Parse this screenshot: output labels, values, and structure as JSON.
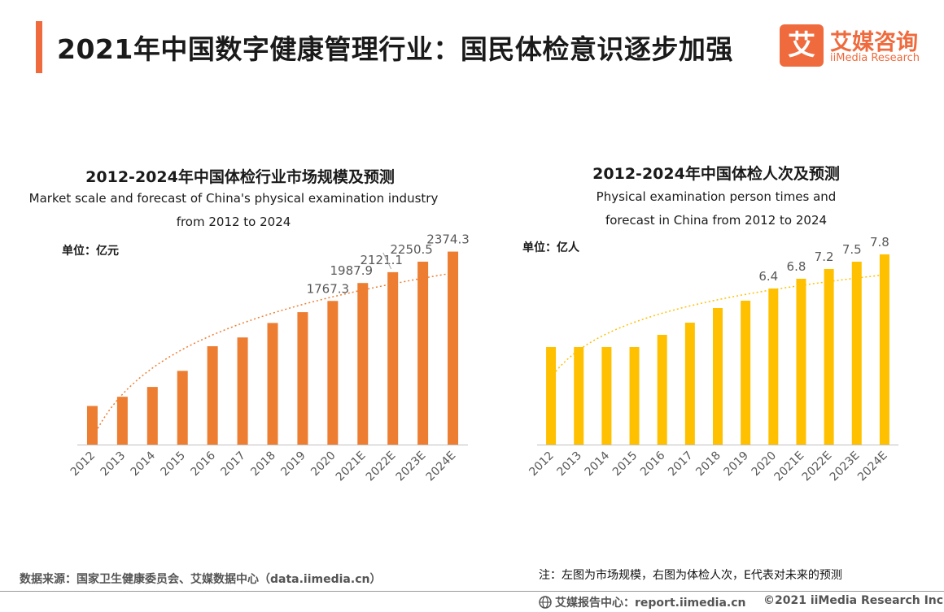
{
  "page": {
    "title": "2021年中国数字健康管理行业：国民体检意识逐步加强"
  },
  "logo": {
    "mark": "艾",
    "cn": "艾媒咨询",
    "en": "iiMedia Research"
  },
  "colors": {
    "accent": "#ef6a3c",
    "orange": "#ed7d31",
    "yellow": "#ffc000",
    "axis": "#bfbfbf",
    "label": "#595959"
  },
  "footer": {
    "source": "数据来源：国家卫生健康委员会、艾媒数据中心（data.iimedia.cn）",
    "note": "注：左图为市场规模，右图为体检人次，E代表对未来的预测",
    "report": "艾媒报告中心：report.iimedia.cn",
    "copyright": "©2021  iiMedia Research  Inc"
  },
  "chart_data": [
    {
      "type": "bar",
      "title": "2012-2024年中国体检行业市场规模及预测",
      "subtitle_lines": [
        "Market scale and forecast of China's physical examination industry",
        "from 2012 to 2024"
      ],
      "unit": "单位：亿元",
      "categories": [
        "2012",
        "2013",
        "2014",
        "2015",
        "2016",
        "2017",
        "2018",
        "2019",
        "2020",
        "2021E",
        "2022E",
        "2023E",
        "2024E"
      ],
      "values": [
        475,
        588,
        709,
        907,
        1210,
        1318,
        1496,
        1629,
        1767.3,
        1987.9,
        2121.1,
        2250.5,
        2374.3
      ],
      "labels": [
        "",
        "",
        "",
        "",
        "",
        "",
        "",
        "",
        "1767.3",
        "1987.9",
        "2121.1",
        "2250.5",
        "2374.3"
      ],
      "ylim": [
        0,
        2400
      ],
      "trendline": "logarithmic",
      "color": "#ed7d31"
    },
    {
      "type": "bar",
      "title": "2012-2024年中国体检人次及预测",
      "subtitle_lines": [
        "Physical examination person times and",
        "forecast in China from 2012 to 2024"
      ],
      "unit": "单位：亿人",
      "categories": [
        "2012",
        "2013",
        "2014",
        "2015",
        "2016",
        "2017",
        "2018",
        "2019",
        "2020",
        "2021E",
        "2022E",
        "2023E",
        "2024E"
      ],
      "values": [
        4.0,
        4.0,
        4.0,
        4.0,
        4.5,
        5.0,
        5.6,
        5.9,
        6.4,
        6.8,
        7.2,
        7.5,
        7.8
      ],
      "labels": [
        "",
        "",
        "",
        "",
        "",
        "",
        "",
        "",
        "6.4",
        "6.8",
        "7.2",
        "7.5",
        "7.8"
      ],
      "ylim": [
        0,
        8
      ],
      "trendline": "logarithmic",
      "color": "#ffc000"
    }
  ]
}
